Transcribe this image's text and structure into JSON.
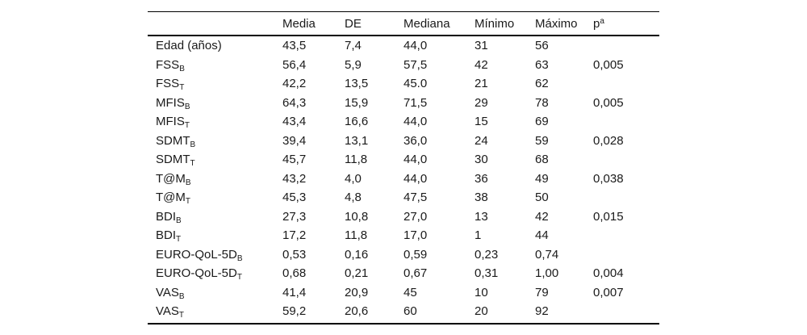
{
  "table": {
    "headers": [
      "Media",
      "DE",
      "Mediana",
      "Mínimo",
      "Máximo"
    ],
    "p_header": {
      "base": "p",
      "sup": "a"
    },
    "rows": [
      {
        "label": "Edad (años)",
        "sub": "",
        "media": "43,5",
        "de": "7,4",
        "mediana": "44,0",
        "minimo": "31",
        "maximo": "56",
        "p": ""
      },
      {
        "label": "FSS",
        "sub": "B",
        "media": "56,4",
        "de": "5,9",
        "mediana": "57,5",
        "minimo": "42",
        "maximo": "63",
        "p": "0,005"
      },
      {
        "label": "FSS",
        "sub": "T",
        "media": "42,2",
        "de": "13,5",
        "mediana": "45.0",
        "minimo": "21",
        "maximo": "62",
        "p": ""
      },
      {
        "label": "MFIS",
        "sub": "B",
        "media": "64,3",
        "de": "15,9",
        "mediana": "71,5",
        "minimo": "29",
        "maximo": "78",
        "p": "0,005"
      },
      {
        "label": "MFIS",
        "sub": "T",
        "media": "43,4",
        "de": "16,6",
        "mediana": "44,0",
        "minimo": "15",
        "maximo": "69",
        "p": ""
      },
      {
        "label": "SDMT",
        "sub": "B",
        "media": "39,4",
        "de": "13,1",
        "mediana": "36,0",
        "minimo": "24",
        "maximo": "59",
        "p": "0,028"
      },
      {
        "label": "SDMT",
        "sub": "T",
        "media": "45,7",
        "de": "11,8",
        "mediana": "44,0",
        "minimo": "30",
        "maximo": "68",
        "p": ""
      },
      {
        "label": "T@M",
        "sub": "B",
        "media": "43,2",
        "de": "4,0",
        "mediana": "44,0",
        "minimo": "36",
        "maximo": "49",
        "p": "0,038"
      },
      {
        "label": "T@M",
        "sub": "T",
        "media": "45,3",
        "de": "4,8",
        "mediana": "47,5",
        "minimo": "38",
        "maximo": "50",
        "p": ""
      },
      {
        "label": "BDI",
        "sub": "B",
        "media": "27,3",
        "de": "10,8",
        "mediana": "27,0",
        "minimo": "13",
        "maximo": "42",
        "p": "0,015"
      },
      {
        "label": "BDI",
        "sub": "T",
        "media": "17,2",
        "de": "11,8",
        "mediana": "17,0",
        "minimo": "1",
        "maximo": "44",
        "p": ""
      },
      {
        "label": "EURO-QoL-5D",
        "sub": "B",
        "media": "0,53",
        "de": "0,16",
        "mediana": "0,59",
        "minimo": "0,23",
        "maximo": "0,74",
        "p": ""
      },
      {
        "label": "EURO-QoL-5D",
        "sub": "T",
        "media": "0,68",
        "de": "0,21",
        "mediana": "0,67",
        "minimo": "0,31",
        "maximo": "1,00",
        "p": "0,004"
      },
      {
        "label": "VAS",
        "sub": "B",
        "media": "41,4",
        "de": "20,9",
        "mediana": "45",
        "minimo": "10",
        "maximo": "79",
        "p": "0,007"
      },
      {
        "label": "VAS",
        "sub": "T",
        "media": "59,2",
        "de": "20,6",
        "mediana": "60",
        "minimo": "20",
        "maximo": "92",
        "p": ""
      }
    ]
  }
}
